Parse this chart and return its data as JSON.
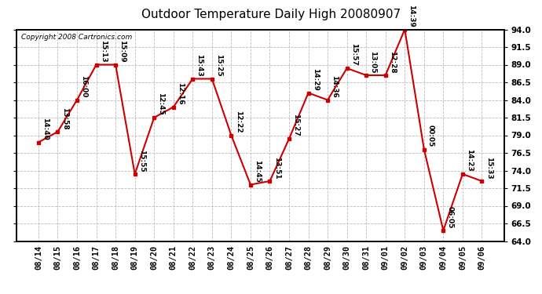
{
  "title": "Outdoor Temperature Daily High 20080907",
  "copyright": "Copyright 2008 Cartronics.com",
  "dates": [
    "08/14",
    "08/15",
    "08/16",
    "08/17",
    "08/18",
    "08/19",
    "08/20",
    "08/21",
    "08/22",
    "08/23",
    "08/24",
    "08/25",
    "08/26",
    "08/27",
    "08/28",
    "08/29",
    "08/30",
    "08/31",
    "09/01",
    "09/02",
    "09/03",
    "09/04",
    "09/05",
    "09/06"
  ],
  "values": [
    78.0,
    79.5,
    84.0,
    89.0,
    89.0,
    73.5,
    81.5,
    83.0,
    87.0,
    87.0,
    79.0,
    72.0,
    72.5,
    78.5,
    85.0,
    84.0,
    88.5,
    87.5,
    87.5,
    94.0,
    77.0,
    65.5,
    73.5,
    72.5
  ],
  "time_labels": [
    "14:40",
    "13:58",
    "16:00",
    "15:13",
    "15:09",
    "15:55",
    "12:45",
    "12:16",
    "15:43",
    "15:25",
    "12:22",
    "14:45",
    "13:51",
    "15:27",
    "14:29",
    "14:36",
    "15:57",
    "13:05",
    "12:28",
    "14:39",
    "00:05",
    "06:05",
    "14:23",
    "15:33"
  ],
  "ylim": [
    64.0,
    94.0
  ],
  "yticks": [
    64.0,
    66.5,
    69.0,
    71.5,
    74.0,
    76.5,
    79.0,
    81.5,
    84.0,
    86.5,
    89.0,
    91.5,
    94.0
  ],
  "line_color": "#cc0000",
  "marker_color": "#cc0000",
  "bg_color": "#ffffff",
  "grid_color": "#bbbbbb",
  "title_fontsize": 11,
  "label_fontsize": 6.5,
  "tick_fontsize": 7.5
}
